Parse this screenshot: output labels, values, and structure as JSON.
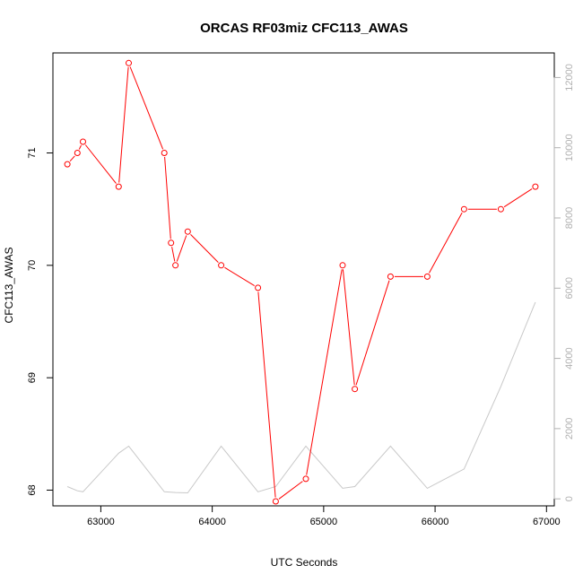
{
  "chart_data": {
    "type": "line",
    "title": "ORCAS RF03miz CFC113_AWAS",
    "xlabel": "UTC Seconds",
    "ylabel": "CFC113_AWAS",
    "xlim": [
      62570,
      67070
    ],
    "ylim": [
      67.86,
      71.89
    ],
    "y2lim": [
      -200,
      12700
    ],
    "x_ticks": [
      63000,
      64000,
      65000,
      66000,
      67000
    ],
    "y_ticks": [
      68,
      69,
      70,
      71
    ],
    "y2_ticks": [
      0,
      2000,
      4000,
      6000,
      8000,
      10000,
      12000
    ],
    "grid": false,
    "colors": {
      "primary": "#ff0000",
      "secondary": "#c8c8c8",
      "axis": "#000000",
      "secondary_axis": "#b0b0b0"
    },
    "series": [
      {
        "axis": "left",
        "marker": "open-circle",
        "x": [
          62700,
          62790,
          62840,
          63160,
          63250,
          63570,
          63630,
          63670,
          63780,
          64080,
          64410,
          64570,
          64840,
          65170,
          65280,
          65600,
          65930,
          66260,
          66590,
          66900
        ],
        "values": [
          70.9,
          71.0,
          71.1,
          70.7,
          71.8,
          71.0,
          70.2,
          70.0,
          70.3,
          70.0,
          69.8,
          67.9,
          68.1,
          70.0,
          68.9,
          69.9,
          69.9,
          70.5,
          70.5,
          70.7
        ]
      },
      {
        "axis": "right",
        "x": [
          62700,
          62790,
          62840,
          63160,
          63250,
          63570,
          63630,
          63670,
          63780,
          64080,
          64410,
          64570,
          64840,
          65170,
          65280,
          65600,
          65930,
          66260,
          66590,
          66900
        ],
        "values": [
          350,
          230,
          200,
          1300,
          1500,
          200,
          190,
          180,
          170,
          1500,
          200,
          350,
          1500,
          300,
          350,
          1500,
          300,
          850,
          3200,
          5600
        ]
      }
    ]
  }
}
